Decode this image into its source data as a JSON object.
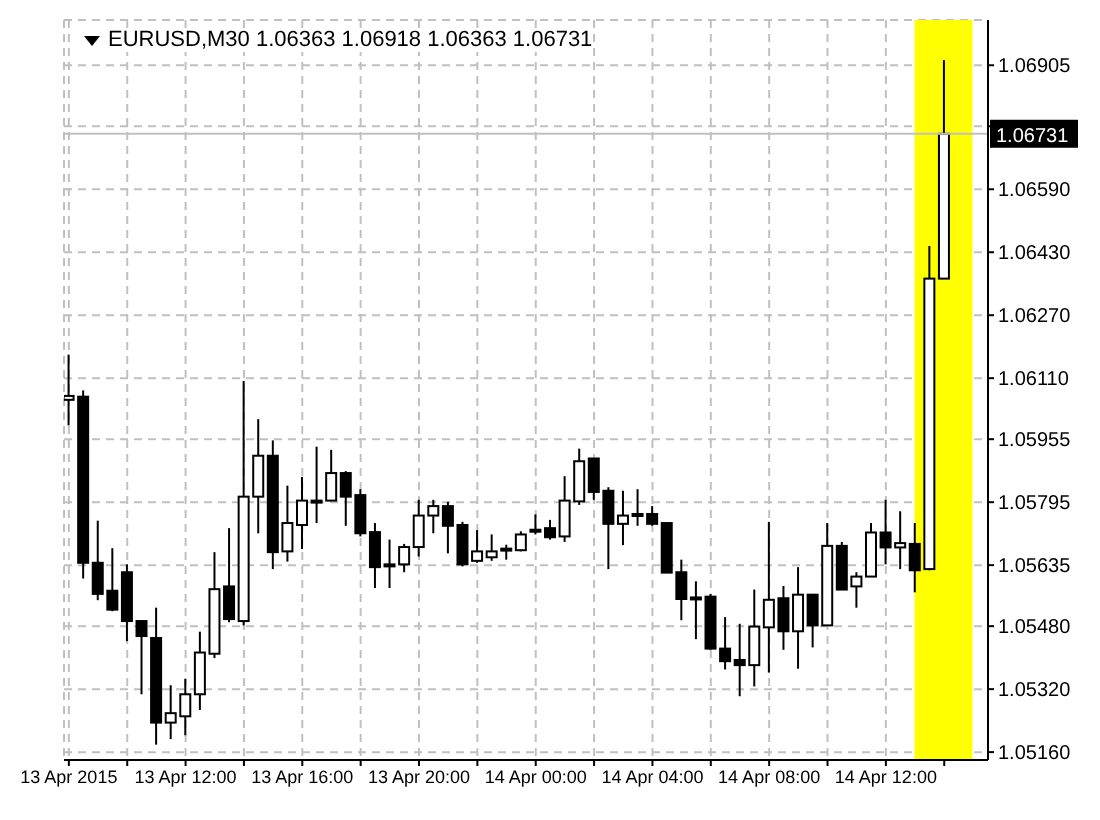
{
  "chart_data": {
    "type": "candlestick",
    "title": "EURUSD,M30  1.06363 1.06918 1.06363 1.06731",
    "color": "#000000",
    "x": [
      "2015-04-13T08:00",
      "2015-04-13T08:30",
      "2015-04-13T09:00",
      "2015-04-13T09:30",
      "2015-04-13T10:00",
      "2015-04-13T10:30",
      "2015-04-13T11:00",
      "2015-04-13T11:30",
      "2015-04-13T12:00",
      "2015-04-13T12:30",
      "2015-04-13T13:00",
      "2015-04-13T13:30",
      "2015-04-13T14:00",
      "2015-04-13T14:30",
      "2015-04-13T15:00",
      "2015-04-13T15:30",
      "2015-04-13T16:00",
      "2015-04-13T16:30",
      "2015-04-13T17:00",
      "2015-04-13T17:30",
      "2015-04-13T18:00",
      "2015-04-13T18:30",
      "2015-04-13T19:00",
      "2015-04-13T19:30",
      "2015-04-13T20:00",
      "2015-04-13T20:30",
      "2015-04-13T21:00",
      "2015-04-13T21:30",
      "2015-04-13T22:00",
      "2015-04-13T22:30",
      "2015-04-13T23:00",
      "2015-04-13T23:30",
      "2015-04-14T00:00",
      "2015-04-14T00:30",
      "2015-04-14T01:00",
      "2015-04-14T01:30",
      "2015-04-14T02:00",
      "2015-04-14T02:30",
      "2015-04-14T03:00",
      "2015-04-14T03:30",
      "2015-04-14T04:00",
      "2015-04-14T04:30",
      "2015-04-14T05:00",
      "2015-04-14T05:30",
      "2015-04-14T06:00",
      "2015-04-14T06:30",
      "2015-04-14T07:00",
      "2015-04-14T07:30",
      "2015-04-14T08:00",
      "2015-04-14T08:30",
      "2015-04-14T09:00",
      "2015-04-14T09:30",
      "2015-04-14T10:00",
      "2015-04-14T10:30",
      "2015-04-14T11:00",
      "2015-04-14T11:30",
      "2015-04-14T12:00",
      "2015-04-14T12:30",
      "2015-04-14T13:00",
      "2015-04-14T13:30",
      "2015-04-14T14:00"
    ],
    "ohlc": [
      [
        1.06055,
        1.0617,
        1.0599,
        1.06065
      ],
      [
        1.06063,
        1.06079,
        1.05601,
        1.05641
      ],
      [
        1.05641,
        1.05748,
        1.05546,
        1.05562
      ],
      [
        1.0557,
        1.05678,
        1.05518,
        1.05522
      ],
      [
        1.05617,
        1.05637,
        1.05442,
        1.05493
      ],
      [
        1.05493,
        1.05493,
        1.05307,
        1.05455
      ],
      [
        1.0545,
        1.05527,
        1.05179,
        1.05235
      ],
      [
        1.05235,
        1.0533,
        1.05193,
        1.05259
      ],
      [
        1.05251,
        1.05346,
        1.05203,
        1.05307
      ],
      [
        1.05307,
        1.05466,
        1.05267,
        1.05413
      ],
      [
        1.0541,
        1.05668,
        1.05399,
        1.05574
      ],
      [
        1.05581,
        1.05729,
        1.0549,
        1.05498
      ],
      [
        1.05493,
        1.06103,
        1.05482,
        1.05809
      ],
      [
        1.05809,
        1.06006,
        1.05716,
        1.05913
      ],
      [
        1.05913,
        1.05952,
        1.05625,
        1.05668
      ],
      [
        1.0567,
        1.05837,
        1.05644,
        1.05742
      ],
      [
        1.05737,
        1.05859,
        1.05676,
        1.05799
      ],
      [
        1.05799,
        1.05936,
        1.05742,
        1.05799
      ],
      [
        1.05799,
        1.05928,
        1.05799,
        1.05869
      ],
      [
        1.05869,
        1.05874,
        1.05735,
        1.05809
      ],
      [
        1.05813,
        1.05828,
        1.05708,
        1.05716
      ],
      [
        1.05719,
        1.05742,
        1.05577,
        1.0563
      ],
      [
        1.05637,
        1.057,
        1.05577,
        1.05633
      ],
      [
        1.05637,
        1.05689,
        1.05617,
        1.05681
      ],
      [
        1.05681,
        1.05801,
        1.05657,
        1.05761
      ],
      [
        1.05761,
        1.05801,
        1.05716,
        1.05785
      ],
      [
        1.05785,
        1.05796,
        1.05665,
        1.05735
      ],
      [
        1.05737,
        1.05745,
        1.05632,
        1.05637
      ],
      [
        1.05646,
        1.05724,
        1.05641,
        1.0567
      ],
      [
        1.05655,
        1.05713,
        1.05646,
        1.0567
      ],
      [
        1.05675,
        1.05687,
        1.05649,
        1.05677
      ],
      [
        1.05673,
        1.05721,
        1.0567,
        1.05713
      ],
      [
        1.05725,
        1.05764,
        1.05713,
        1.0572
      ],
      [
        1.05729,
        1.0575,
        1.057,
        1.05706
      ],
      [
        1.05708,
        1.05861,
        1.05694,
        1.05799
      ],
      [
        1.05797,
        1.05931,
        1.05788,
        1.05899
      ],
      [
        1.05906,
        1.05906,
        1.05801,
        1.05821
      ],
      [
        1.05824,
        1.05833,
        1.05625,
        1.0574
      ],
      [
        1.0574,
        1.05824,
        1.05686,
        1.05761
      ],
      [
        1.05765,
        1.05828,
        1.05735,
        1.05763
      ],
      [
        1.05765,
        1.05785,
        1.05735,
        1.0574
      ],
      [
        1.05742,
        1.05742,
        1.05616,
        1.05616
      ],
      [
        1.05617,
        1.05649,
        1.05495,
        1.05549
      ],
      [
        1.05553,
        1.05594,
        1.05447,
        1.05551
      ],
      [
        1.05555,
        1.05562,
        1.0542,
        1.05423
      ],
      [
        1.05423,
        1.05503,
        1.0537,
        1.05391
      ],
      [
        1.05394,
        1.05486,
        1.05302,
        1.05381
      ],
      [
        1.05381,
        1.05573,
        1.05327,
        1.05479
      ],
      [
        1.05477,
        1.05745,
        1.05362,
        1.05547
      ],
      [
        1.05551,
        1.05582,
        1.0542,
        1.05467
      ],
      [
        1.05467,
        1.0563,
        1.05372,
        1.0556
      ],
      [
        1.0556,
        1.0556,
        1.05426,
        1.05482
      ],
      [
        1.05482,
        1.05742,
        1.05482,
        1.05684
      ],
      [
        1.05684,
        1.05694,
        1.05573,
        1.05573
      ],
      [
        1.05581,
        1.05617,
        1.05527,
        1.05606
      ],
      [
        1.05606,
        1.05742,
        1.05606,
        1.05718
      ],
      [
        1.05718,
        1.05801,
        1.05637,
        1.0568
      ],
      [
        1.0568,
        1.05772,
        1.05625,
        1.05691
      ],
      [
        1.05689,
        1.05742,
        1.05566,
        1.05622
      ],
      [
        1.05625,
        1.06446,
        1.05622,
        1.06363
      ],
      [
        1.06363,
        1.06918,
        1.06363,
        1.06731
      ]
    ],
    "xlim": [
      "2015-04-13T07:50",
      "2015-04-14T15:30"
    ],
    "xticks": [
      {
        "value": "2015-04-13T08:00",
        "label": "13 Apr 2015"
      },
      {
        "value": "2015-04-13T10:00",
        "label": null
      },
      {
        "value": "2015-04-13T12:00",
        "label": "13 Apr 12:00"
      },
      {
        "value": "2015-04-13T14:00",
        "label": null
      },
      {
        "value": "2015-04-13T16:00",
        "label": "13 Apr 16:00"
      },
      {
        "value": "2015-04-13T18:00",
        "label": null
      },
      {
        "value": "2015-04-13T20:00",
        "label": "13 Apr 20:00"
      },
      {
        "value": "2015-04-13T22:00",
        "label": null
      },
      {
        "value": "2015-04-14T00:00",
        "label": "14 Apr 00:00"
      },
      {
        "value": "2015-04-14T02:00",
        "label": null
      },
      {
        "value": "2015-04-14T04:00",
        "label": "14 Apr 04:00"
      },
      {
        "value": "2015-04-14T06:00",
        "label": null
      },
      {
        "value": "2015-04-14T08:00",
        "label": "14 Apr 08:00"
      },
      {
        "value": "2015-04-14T10:00",
        "label": null
      },
      {
        "value": "2015-04-14T12:00",
        "label": "14 Apr 12:00"
      },
      {
        "value": "2015-04-14T14:00",
        "label": null
      }
    ],
    "ylim": [
      1.0514,
      1.0702
    ],
    "yticks": [
      {
        "value": 1.0516,
        "label": "1.05160"
      },
      {
        "value": 1.0532,
        "label": "1.05320"
      },
      {
        "value": 1.0548,
        "label": "1.05480"
      },
      {
        "value": 1.05635,
        "label": "1.05635"
      },
      {
        "value": 1.05795,
        "label": "1.05795"
      },
      {
        "value": 1.05955,
        "label": "1.05955"
      },
      {
        "value": 1.0611,
        "label": "1.06110"
      },
      {
        "value": 1.0627,
        "label": "1.06270"
      },
      {
        "value": 1.0643,
        "label": "1.06430"
      },
      {
        "value": 1.0659,
        "label": "1.06590"
      },
      {
        "value": 1.0675,
        "label": null
      },
      {
        "value": 1.06905,
        "label": "1.06905"
      }
    ],
    "ref_lines": [
      {
        "axis": "y",
        "value": 1.06731,
        "label": "1.06731",
        "color": "#c0c0c0"
      }
    ],
    "bands": [
      {
        "axis": "x",
        "from": "2015-04-14T12:59",
        "to": "2015-04-14T14:58",
        "color": "#ffff00"
      }
    ],
    "grid": true
  }
}
